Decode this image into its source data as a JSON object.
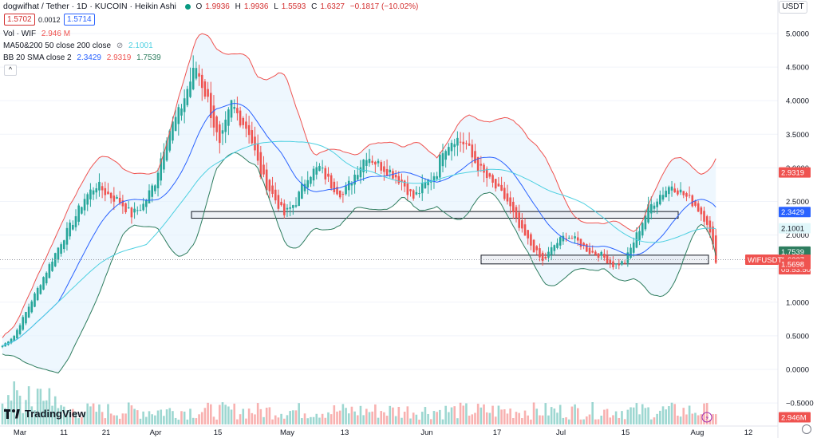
{
  "header": {
    "symbol": "dogwifhat / Tether · 1D · KUCOIN · Heikin Ashi",
    "ohlc": [
      {
        "label": "O",
        "value": "1.9936"
      },
      {
        "label": "H",
        "value": "1.9936"
      },
      {
        "label": "L",
        "value": "1.5593"
      },
      {
        "label": "C",
        "value": "1.6327"
      }
    ],
    "change": "−0.1817 (−10.02%)",
    "bid": "1.5702",
    "spread": "0.0012",
    "ask": "1.5714",
    "currency": "USDT"
  },
  "indicators": {
    "vol": {
      "label": "Vol · WIF",
      "value": "2.946 M"
    },
    "ma": {
      "label": "MA50&200 50 close 200 close",
      "icon": "eye-off-icon",
      "value": "2.1001"
    },
    "bb": {
      "label": "BB 20 SMA close 2",
      "basis": "2.3429",
      "upper": "2.9319",
      "lower": "1.7539"
    },
    "collapse": "^"
  },
  "price_labels": {
    "upper": "2.9319",
    "basis": "2.3429",
    "ma": "2.1001",
    "lower": "1.7539",
    "ticker": "WIFUSDT",
    "current": "1.6327",
    "countdown": "05:53:50",
    "support": "1.5698",
    "volume": "2.946M"
  },
  "branding": {
    "logo_text": "TradingView"
  },
  "colors": {
    "up": "#26a69a",
    "down": "#ef5350",
    "bb_upper": "#ef5350",
    "bb_basis": "#2962ff",
    "bb_lower": "#2e7d5f",
    "ma": "#4dd0e1",
    "band_fill": "#e3f2fd"
  },
  "chart_data": {
    "type": "candlestick",
    "y_axis": {
      "ticks": [
        "5.0000",
        "4.5000",
        "4.0000",
        "3.5000",
        "3.0000",
        "2.5000",
        "2.0000",
        "1.5000",
        "1.0000",
        "0.5000",
        "0.0000",
        "−0.5000"
      ],
      "range": [
        -0.65,
        5.2
      ]
    },
    "x_axis": {
      "ticks": [
        "Mar",
        "11",
        "21",
        "Apr",
        "15",
        "May",
        "13",
        "Jun",
        "17",
        "Jul",
        "15",
        "Aug",
        "12"
      ]
    },
    "bars": 160,
    "close_path": [
      [
        0,
        0.35
      ],
      [
        4,
        0.5
      ],
      [
        8,
        0.85
      ],
      [
        12,
        1.2
      ],
      [
        16,
        1.55
      ],
      [
        20,
        1.9
      ],
      [
        24,
        2.2
      ],
      [
        28,
        2.55
      ],
      [
        32,
        2.75
      ],
      [
        36,
        2.6
      ],
      [
        40,
        2.5
      ],
      [
        44,
        2.3
      ],
      [
        48,
        2.45
      ],
      [
        52,
        2.8
      ],
      [
        56,
        3.5
      ],
      [
        60,
        3.8
      ],
      [
        64,
        4.3
      ],
      [
        66,
        4.5
      ],
      [
        70,
        4.0
      ],
      [
        74,
        3.3
      ],
      [
        78,
        3.95
      ],
      [
        80,
        3.8
      ],
      [
        84,
        3.55
      ],
      [
        88,
        2.9
      ],
      [
        92,
        2.6
      ],
      [
        96,
        2.3
      ],
      [
        100,
        2.5
      ],
      [
        104,
        2.9
      ],
      [
        108,
        3.0
      ],
      [
        112,
        2.75
      ],
      [
        116,
        2.6
      ],
      [
        120,
        2.9
      ],
      [
        124,
        3.2
      ],
      [
        128,
        3.05
      ],
      [
        132,
        2.95
      ],
      [
        136,
        2.8
      ],
      [
        140,
        2.55
      ],
      [
        144,
        2.75
      ],
      [
        148,
        2.95
      ],
      [
        150,
        3.3
      ],
      [
        154,
        3.45
      ],
      [
        158,
        3.35
      ],
      [
        160,
        3.15
      ],
      [
        164,
        2.9
      ],
      [
        168,
        2.7
      ],
      [
        172,
        2.5
      ],
      [
        176,
        2.1
      ],
      [
        180,
        1.85
      ],
      [
        184,
        1.6
      ],
      [
        188,
        1.85
      ],
      [
        192,
        2.0
      ],
      [
        196,
        1.9
      ],
      [
        200,
        1.75
      ],
      [
        204,
        1.7
      ],
      [
        208,
        1.55
      ],
      [
        212,
        1.6
      ],
      [
        216,
        2.0
      ],
      [
        220,
        2.4
      ],
      [
        224,
        2.6
      ],
      [
        228,
        2.75
      ],
      [
        232,
        2.6
      ],
      [
        236,
        2.45
      ],
      [
        240,
        2.2
      ],
      [
        243,
        1.633
      ]
    ],
    "volume_note": "volume bars with last value 2.946M",
    "horizontal_zones": [
      [
        2.25,
        2.35
      ],
      [
        1.57,
        1.7
      ]
    ],
    "bb_upper_last": 2.9319,
    "bb_basis_last": 2.3429,
    "bb_lower_last": 1.7539,
    "ma_last": 2.1001
  }
}
